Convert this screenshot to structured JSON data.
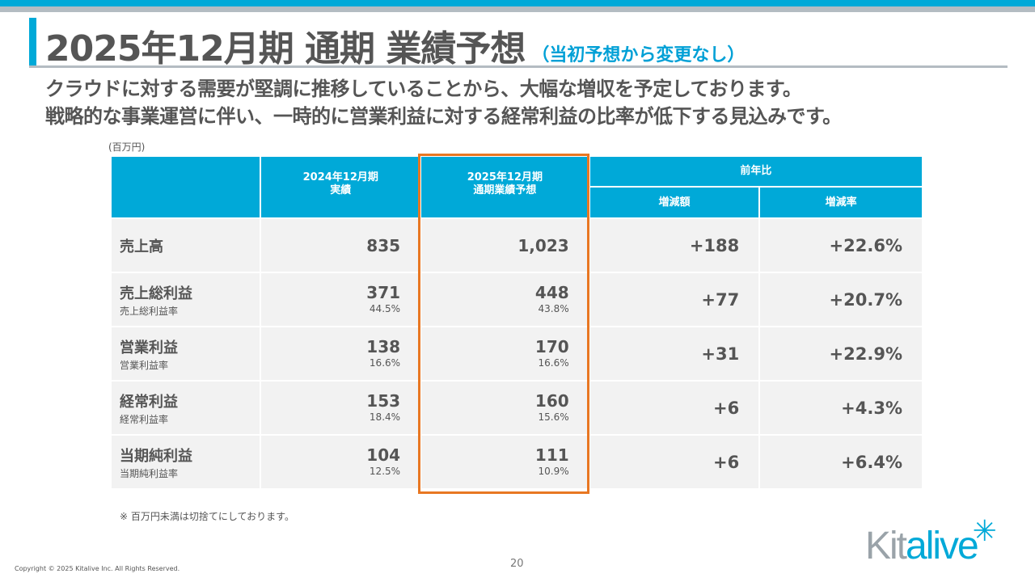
{
  "title": {
    "main": "2025年12月期 通期 業績予想",
    "sub": "（当初予想から変更なし）"
  },
  "lead": [
    "クラウドに対する需要が堅調に推移していることから、大幅な増収を予定しております。",
    "戦略的な事業運営に伴い、一時的に営業利益に対する経常利益の比率が低下する見込みです。"
  ],
  "unit": "(百万円)",
  "table": {
    "headers": {
      "fy2024": "2024年12月期\n実績",
      "fy2025": "2025年12月期\n通期業績予想",
      "yoy": "前年比",
      "change": "増減額",
      "rate": "増減率"
    },
    "rows": [
      {
        "label": "売上高",
        "sub": "",
        "v2024": "835",
        "p2024": "",
        "v2025": "1,023",
        "p2025": "",
        "change": "+188",
        "rate": "+22.6%"
      },
      {
        "label": "売上総利益",
        "sub": "売上総利益率",
        "v2024": "371",
        "p2024": "44.5%",
        "v2025": "448",
        "p2025": "43.8%",
        "change": "+77",
        "rate": "+20.7%"
      },
      {
        "label": "営業利益",
        "sub": "営業利益率",
        "v2024": "138",
        "p2024": "16.6%",
        "v2025": "170",
        "p2025": "16.6%",
        "change": "+31",
        "rate": "+22.9%"
      },
      {
        "label": "経常利益",
        "sub": "経常利益率",
        "v2024": "153",
        "p2024": "18.4%",
        "v2025": "160",
        "p2025": "15.6%",
        "change": "+6",
        "rate": "+4.3%"
      },
      {
        "label": "当期純利益",
        "sub": "当期純利益率",
        "v2024": "104",
        "p2024": "12.5%",
        "v2025": "111",
        "p2025": "10.9%",
        "change": "+6",
        "rate": "+6.4%"
      }
    ]
  },
  "note": "※ 百万円未満は切捨てにしております。",
  "footer": {
    "copyright": "Copyright © 2025 Kitalive Inc. All Rights Reserved.",
    "page": "20"
  },
  "logo": {
    "text": "Kitalive"
  },
  "colors": {
    "accent": "#00a9d8",
    "highlight": "#e87722",
    "text": "#555555"
  }
}
